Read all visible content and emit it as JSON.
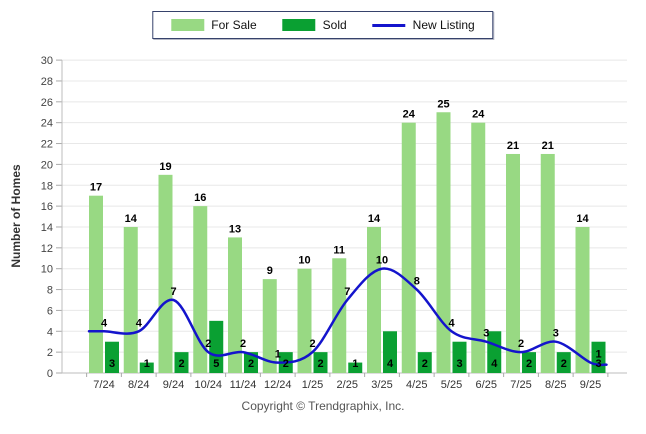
{
  "legend": {
    "items": [
      {
        "label": "For Sale",
        "color": "#98d983",
        "swatch": "bar"
      },
      {
        "label": "Sold",
        "color": "#0aa032",
        "swatch": "bar"
      },
      {
        "label": "New Listing",
        "color": "#1414cc",
        "swatch": "line"
      }
    ]
  },
  "footer": {
    "copyright": "Copyright © Trendgraphix, Inc."
  },
  "chart_data": {
    "type": "bar",
    "categories": [
      "7/24",
      "8/24",
      "9/24",
      "10/24",
      "11/24",
      "12/24",
      "1/25",
      "2/25",
      "3/25",
      "4/25",
      "5/25",
      "6/25",
      "7/25",
      "8/25",
      "9/25"
    ],
    "series": [
      {
        "name": "For Sale",
        "type": "bar",
        "color": "#98d983",
        "values": [
          17,
          14,
          19,
          16,
          13,
          9,
          10,
          11,
          14,
          24,
          25,
          24,
          21,
          21,
          14
        ]
      },
      {
        "name": "Sold",
        "type": "bar",
        "color": "#0aa032",
        "values": [
          3,
          1,
          2,
          5,
          2,
          2,
          2,
          1,
          4,
          2,
          3,
          4,
          2,
          2,
          3
        ]
      },
      {
        "name": "New Listing",
        "type": "line",
        "color": "#1414cc",
        "values": [
          4,
          4,
          7,
          2,
          2,
          1,
          2,
          7,
          10,
          8,
          4,
          3,
          2,
          3,
          1
        ]
      }
    ],
    "title": "",
    "xlabel": "",
    "ylabel": "Number of Homes",
    "ylim": [
      0,
      30
    ],
    "ytick_step": 2,
    "grid": true,
    "legend_position": "top",
    "colors": {
      "gridline": "#e8e8e8",
      "axis": "#bdbdbd",
      "tick": "#aaaaaa",
      "tick_label": "#444444",
      "value_label": "#000000"
    }
  }
}
